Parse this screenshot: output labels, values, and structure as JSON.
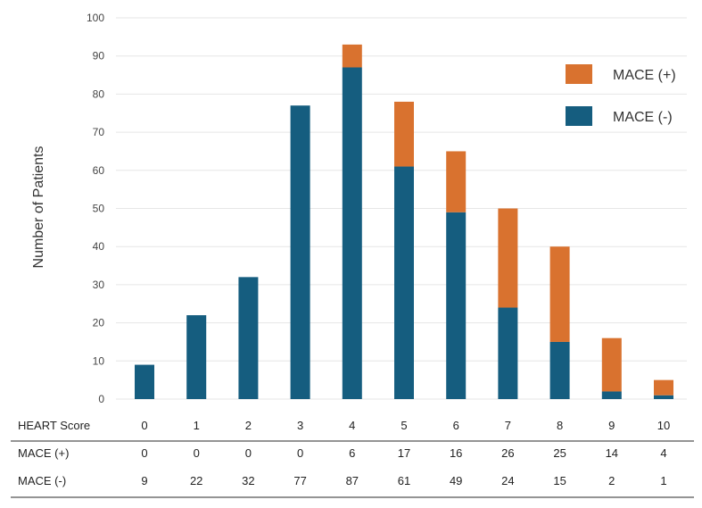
{
  "chart_data": {
    "type": "bar",
    "stacked": true,
    "ylabel": "Number of Patients",
    "ylim": [
      0,
      100
    ],
    "yticks": [
      0,
      10,
      20,
      30,
      40,
      50,
      60,
      70,
      80,
      90,
      100
    ],
    "grid": true,
    "legend_position": "top-right",
    "categories": [
      "0",
      "1",
      "2",
      "3",
      "4",
      "5",
      "6",
      "7",
      "8",
      "9",
      "10"
    ],
    "series": [
      {
        "name": "MACE (-)",
        "color": "#155d7f",
        "values": [
          9,
          22,
          32,
          77,
          87,
          61,
          49,
          24,
          15,
          2,
          1
        ]
      },
      {
        "name": "MACE (+)",
        "color": "#d9722f",
        "values": [
          0,
          0,
          0,
          0,
          6,
          17,
          16,
          26,
          25,
          14,
          4
        ]
      }
    ],
    "legend": [
      {
        "name": "MACE (+)",
        "color": "#d9722f"
      },
      {
        "name": "MACE (-)",
        "color": "#155d7f"
      }
    ],
    "table": {
      "header_label": "HEART Score",
      "rows": [
        {
          "label": "MACE (+)",
          "values": [
            "0",
            "0",
            "0",
            "0",
            "6",
            "17",
            "16",
            "26",
            "25",
            "14",
            "4"
          ]
        },
        {
          "label": "MACE (-)",
          "values": [
            "9",
            "22",
            "32",
            "77",
            "87",
            "61",
            "49",
            "24",
            "15",
            "2",
            "1"
          ]
        }
      ]
    }
  }
}
